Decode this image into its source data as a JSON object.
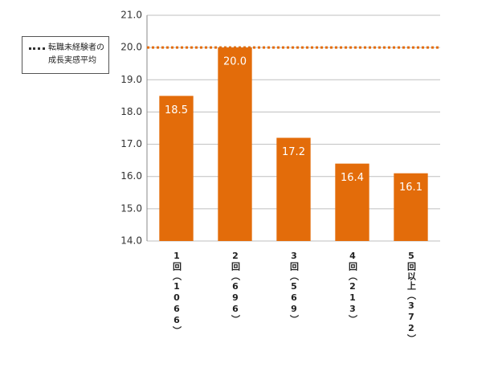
{
  "chart_data": {
    "type": "bar",
    "categories": [
      "1回（1066）",
      "2回（696）",
      "3回（569）",
      "4回（213）",
      "5回以上（372）"
    ],
    "values": [
      18.5,
      20.0,
      17.2,
      16.4,
      16.1
    ],
    "value_labels": [
      "18.5",
      "20.0",
      "17.2",
      "16.4",
      "16.1"
    ],
    "color": "#e36c0a",
    "ylim": [
      14,
      21
    ],
    "yticks": [
      {
        "value": 14,
        "label": "14.0"
      },
      {
        "value": 15,
        "label": "15.0"
      },
      {
        "value": 16,
        "label": "16.0"
      },
      {
        "value": 17,
        "label": "17.0"
      },
      {
        "value": 18,
        "label": "18.0"
      },
      {
        "value": 19,
        "label": "19.0"
      },
      {
        "value": 20,
        "label": "20.0"
      },
      {
        "value": 21,
        "label": "21.0"
      }
    ],
    "grid": true,
    "reference_line": {
      "value": 20,
      "label": "転職未経験者の成長実感平均",
      "color": "#e36c0a"
    },
    "legend": "upper-left"
  }
}
